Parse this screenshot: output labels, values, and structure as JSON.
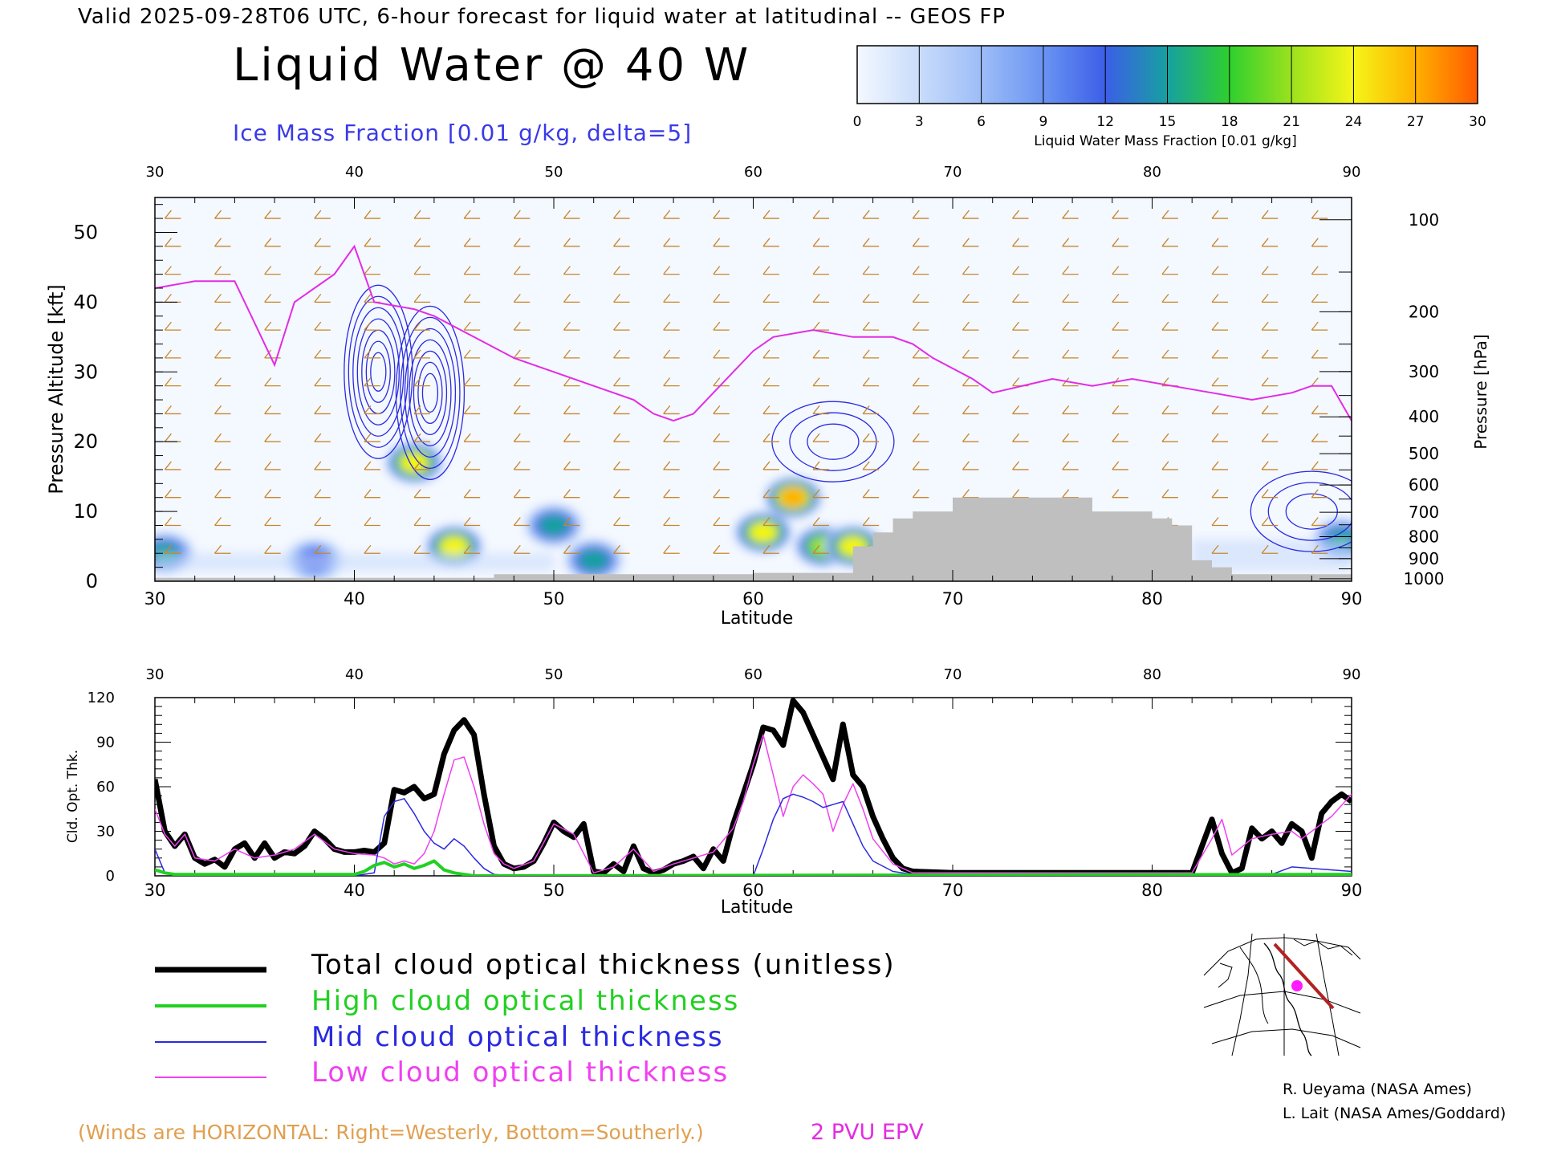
{
  "header": {
    "valid_line": "Valid 2025-09-28T06 UTC, 6-hour forecast for liquid water at latitudinal -- GEOS FP",
    "title": "Liquid Water @ 40 W",
    "subtitle": "Ice Mass Fraction [0.01 g/kg, delta=5]"
  },
  "colorbar": {
    "label": "Liquid Water Mass Fraction [0.01 g/kg]",
    "ticks": [
      "0",
      "3",
      "6",
      "9",
      "12",
      "15",
      "18",
      "21",
      "24",
      "27",
      "30"
    ],
    "colors": [
      "#f4f8ff",
      "#c9dcfb",
      "#9dbdf7",
      "#6a94f2",
      "#3c5ee8",
      "#17a0a0",
      "#2fcf2f",
      "#9be21d",
      "#f5f518",
      "#ffb000",
      "#ff5a00"
    ]
  },
  "upper_panel": {
    "ylabel": "Pressure Altitude [kft]",
    "y2label": "Pressure [hPa]",
    "xlabel": "Latitude",
    "x_ticks": [
      "30",
      "40",
      "50",
      "60",
      "70",
      "80",
      "90"
    ],
    "y_ticks": [
      "0",
      "10",
      "20",
      "30",
      "40",
      "50"
    ],
    "pressure_ticks": [
      "100",
      "200",
      "300",
      "400",
      "500",
      "600",
      "700",
      "800",
      "900",
      "1000"
    ]
  },
  "lower_panel": {
    "ylabel": "Cld. Opt. Thk.",
    "xlabel": "Latitude",
    "x_ticks": [
      "30",
      "40",
      "50",
      "60",
      "70",
      "80",
      "90"
    ],
    "y_ticks": [
      "0",
      "30",
      "60",
      "90",
      "120"
    ]
  },
  "legend": [
    {
      "label": "Total cloud optical thickness (unitless)",
      "color": "#000000"
    },
    {
      "label": "High cloud optical thickness",
      "color": "#22d022"
    },
    {
      "label": "Mid cloud optical thickness",
      "color": "#2a2ae0"
    },
    {
      "label": "Low cloud optical thickness",
      "color": "#f040f0"
    }
  ],
  "footer": {
    "winds_note": "(Winds are HORIZONTAL: Right=Westerly, Bottom=Southerly.)",
    "pv_label": "2 PVU EPV"
  },
  "credits": [
    "R. Ueyama (NASA Ames)",
    "L. Lait (NASA Ames/Goddard)"
  ],
  "chart_data": [
    {
      "type": "heatmap",
      "title": "Liquid Water @ 40 W",
      "xlabel": "Latitude",
      "ylabel": "Pressure Altitude [kft]",
      "xlim": [
        30,
        90
      ],
      "ylim": [
        0,
        55
      ],
      "value_range": [
        0,
        30
      ],
      "liquid_water_blobs": [
        {
          "lat": 43,
          "alt": 17,
          "peak": 24
        },
        {
          "lat": 45,
          "alt": 5,
          "peak": 24
        },
        {
          "lat": 50,
          "alt": 8,
          "peak": 15
        },
        {
          "lat": 52,
          "alt": 3,
          "peak": 15
        },
        {
          "lat": 30.5,
          "alt": 4,
          "peak": 15
        },
        {
          "lat": 38,
          "alt": 3,
          "peak": 12
        },
        {
          "lat": 60.5,
          "alt": 7,
          "peak": 24
        },
        {
          "lat": 62,
          "alt": 12,
          "peak": 27
        },
        {
          "lat": 63.5,
          "alt": 5,
          "peak": 21
        },
        {
          "lat": 65,
          "alt": 5,
          "peak": 24
        },
        {
          "lat": 89.5,
          "alt": 6,
          "peak": 15
        }
      ],
      "ice_contour_centers": [
        {
          "lat": 41.2,
          "alt": 30
        },
        {
          "lat": 43.8,
          "alt": 27
        },
        {
          "lat": 64,
          "alt": 20
        },
        {
          "lat": 88,
          "alt": 10
        }
      ],
      "pv2_line": {
        "lat": [
          30,
          32,
          34,
          35,
          36,
          37,
          39,
          40,
          41,
          43,
          44,
          46,
          48,
          50,
          52,
          54,
          55,
          56,
          57,
          58,
          59,
          60,
          61,
          63,
          65,
          67,
          68,
          69,
          71,
          72,
          75,
          77,
          79,
          81,
          83,
          85,
          87,
          88,
          89,
          90
        ],
        "alt": [
          42,
          43,
          43,
          37,
          31,
          40,
          44,
          48,
          40,
          39,
          38,
          35,
          32,
          30,
          28,
          26,
          24,
          23,
          24,
          27,
          30,
          33,
          35,
          36,
          35,
          35,
          34,
          32,
          29,
          27,
          29,
          28,
          29,
          28,
          27,
          26,
          27,
          28,
          28,
          23
        ]
      },
      "terrain": {
        "lat": [
          30,
          46,
          47,
          50,
          55,
          60,
          63,
          65,
          66,
          67,
          68,
          70,
          76,
          77,
          79,
          80,
          81,
          82,
          83,
          84,
          90
        ],
        "alt": [
          0.5,
          0.5,
          1.0,
          1.0,
          1.0,
          1.2,
          1.2,
          5,
          7,
          9,
          10,
          12,
          12,
          10,
          10,
          9,
          8,
          3,
          2,
          1,
          1
        ]
      }
    },
    {
      "type": "line",
      "xlabel": "Latitude",
      "ylabel": "Cld. Opt. Thk.",
      "xlim": [
        30,
        90
      ],
      "ylim": [
        0,
        120
      ],
      "series": [
        {
          "name": "Total cloud optical thickness (unitless)",
          "x": [
            30,
            30.5,
            31,
            31.5,
            32,
            32.5,
            33,
            33.5,
            34,
            34.5,
            35,
            35.5,
            36,
            36.5,
            37,
            37.5,
            38,
            38.5,
            39,
            39.5,
            40,
            40.5,
            41,
            41.5,
            42,
            42.5,
            43,
            43.5,
            44,
            44.5,
            45,
            45.5,
            46,
            46.5,
            47,
            47.5,
            48,
            48.5,
            49,
            49.5,
            50,
            50.5,
            51,
            51.5,
            52,
            52.5,
            53,
            53.5,
            54,
            54.5,
            55,
            55.5,
            56,
            56.5,
            57,
            57.5,
            58,
            58.5,
            59,
            59.5,
            60,
            60.5,
            61,
            61.5,
            62,
            62.5,
            63,
            63.5,
            64,
            64.5,
            65,
            65.5,
            66,
            66.5,
            67,
            67.5,
            68,
            70,
            75,
            78,
            80,
            82,
            82.5,
            83,
            83.5,
            84,
            84.5,
            85,
            85.5,
            86,
            86.5,
            87,
            87.5,
            88,
            88.5,
            89,
            89.5,
            90
          ],
          "y": [
            65,
            30,
            20,
            28,
            12,
            8,
            11,
            6,
            18,
            22,
            12,
            22,
            12,
            16,
            15,
            20,
            30,
            25,
            18,
            16,
            16,
            17,
            16,
            22,
            58,
            56,
            60,
            52,
            55,
            82,
            98,
            105,
            95,
            55,
            20,
            8,
            5,
            6,
            10,
            22,
            36,
            30,
            26,
            35,
            3,
            2,
            8,
            3,
            20,
            5,
            2,
            4,
            8,
            10,
            13,
            5,
            18,
            10,
            35,
            55,
            75,
            100,
            98,
            88,
            118,
            110,
            95,
            80,
            65,
            102,
            68,
            60,
            40,
            25,
            12,
            5,
            3,
            2,
            2,
            2,
            2,
            2,
            20,
            38,
            15,
            2,
            5,
            32,
            25,
            30,
            22,
            35,
            30,
            12,
            42,
            50,
            55,
            50
          ]
        },
        {
          "name": "High cloud optical thickness",
          "x": [
            30,
            30.5,
            31,
            40,
            40.5,
            41,
            41.5,
            42,
            42.5,
            43,
            43.5,
            44,
            44.5,
            45,
            45.5,
            46,
            90
          ],
          "y": [
            4,
            2,
            1,
            1,
            3,
            7,
            9,
            6,
            8,
            5,
            7,
            10,
            4,
            2,
            1,
            0,
            1
          ]
        },
        {
          "name": "Mid cloud optical thickness",
          "x": [
            30,
            30.5,
            31,
            40,
            41,
            41.5,
            42,
            42.5,
            43,
            43.5,
            44,
            44.5,
            45,
            45.5,
            46,
            46.5,
            47,
            48,
            60,
            60.5,
            61,
            61.5,
            62,
            62.5,
            63,
            63.5,
            64,
            64.5,
            65,
            65.5,
            66,
            67,
            68,
            86,
            87,
            88,
            89,
            90
          ],
          "y": [
            18,
            2,
            0,
            0,
            2,
            40,
            50,
            52,
            42,
            30,
            22,
            18,
            25,
            20,
            12,
            5,
            1,
            0,
            0,
            18,
            38,
            52,
            55,
            53,
            50,
            46,
            48,
            50,
            35,
            20,
            10,
            3,
            1,
            1,
            6,
            5,
            4,
            3
          ]
        },
        {
          "name": "Low cloud optical thickness",
          "x": [
            30,
            30.5,
            31,
            31.5,
            32,
            33,
            34,
            35,
            36,
            37,
            38,
            39,
            40,
            41,
            41.5,
            42,
            42.5,
            43,
            43.5,
            44,
            44.5,
            45,
            45.5,
            46,
            46.5,
            47,
            47.5,
            48,
            49,
            50,
            51,
            52,
            53,
            54,
            55,
            56,
            57,
            58,
            59,
            59.5,
            60,
            60.5,
            61,
            61.5,
            62,
            62.5,
            63,
            63.5,
            64,
            64.5,
            65,
            65.5,
            66,
            67,
            68,
            82,
            83,
            83.5,
            84,
            85,
            86,
            87,
            87.5,
            88,
            89,
            90
          ],
          "y": [
            45,
            28,
            20,
            28,
            12,
            10,
            18,
            12,
            14,
            18,
            28,
            18,
            15,
            14,
            12,
            8,
            10,
            8,
            15,
            30,
            55,
            78,
            80,
            60,
            35,
            15,
            8,
            5,
            10,
            35,
            28,
            2,
            6,
            18,
            3,
            8,
            12,
            16,
            32,
            50,
            75,
            95,
            68,
            40,
            60,
            68,
            62,
            55,
            30,
            48,
            62,
            45,
            25,
            8,
            2,
            2,
            25,
            38,
            14,
            25,
            28,
            30,
            25,
            30,
            40,
            55
          ]
        }
      ]
    }
  ]
}
